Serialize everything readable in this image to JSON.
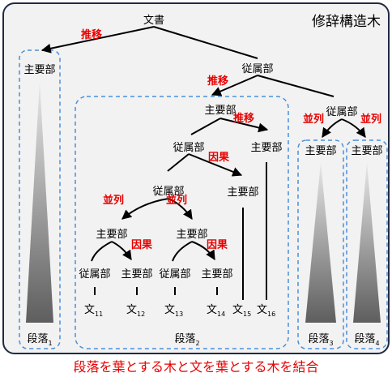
{
  "title": "修辞構造木",
  "caption": "段落を葉とする木と文を葉とする木を結合",
  "root_label": "文書",
  "node_labels": {
    "subordinate": "従属部",
    "main": "主要部"
  },
  "relations": {
    "elaboration": "推移",
    "causal": "因果",
    "parallel": "並列"
  },
  "paragraphs": {
    "p1": {
      "base": "段落",
      "sub": "1"
    },
    "p2": {
      "base": "段落",
      "sub": "2"
    },
    "p3": {
      "base": "段落",
      "sub": "3"
    },
    "p4": {
      "base": "段落",
      "sub": "4"
    }
  },
  "sentences": {
    "s11": {
      "base": "文",
      "sub": "11"
    },
    "s12": {
      "base": "文",
      "sub": "12"
    },
    "s13": {
      "base": "文",
      "sub": "13"
    },
    "s14": {
      "base": "文",
      "sub": "14"
    },
    "s15": {
      "base": "文",
      "sub": "15"
    },
    "s16": {
      "base": "文",
      "sub": "16"
    }
  },
  "colors": {
    "relation": "#e60000",
    "panel_border": "#1f2a44",
    "panel_bg": "#f2f2f2",
    "dashed_box": "#4a90d9",
    "triangle": "#6e6e6e",
    "line": "#000000"
  }
}
